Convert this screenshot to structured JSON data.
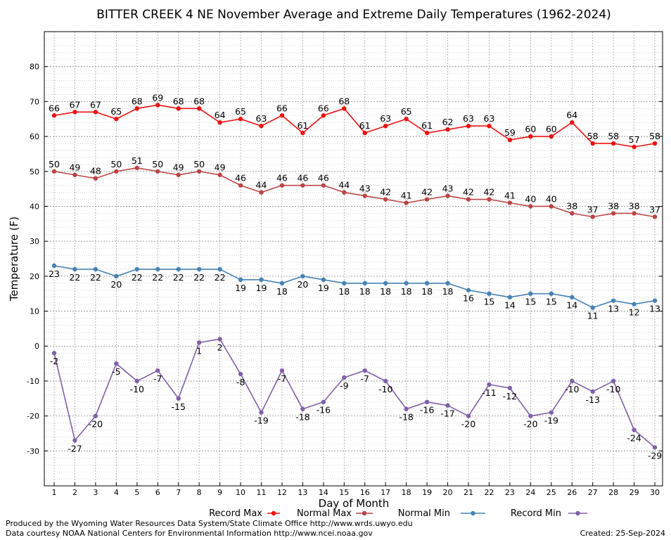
{
  "chart_data": {
    "type": "line",
    "title": "BITTER CREEK 4 NE November Average and Extreme Daily Temperatures (1962-2024)",
    "xlabel": "Day of Month",
    "ylabel": "Temperature (F)",
    "ylim": [
      -40,
      90
    ],
    "yticks": [
      -30,
      -20,
      -10,
      0,
      10,
      20,
      30,
      40,
      50,
      60,
      70,
      80
    ],
    "grid": true,
    "legend_position": "bottom",
    "x": [
      1,
      2,
      3,
      4,
      5,
      6,
      7,
      8,
      9,
      10,
      11,
      12,
      13,
      14,
      15,
      16,
      17,
      18,
      19,
      20,
      21,
      22,
      23,
      24,
      25,
      26,
      27,
      28,
      29,
      30
    ],
    "series": [
      {
        "name": "Record Max",
        "color": "#ee1111",
        "label_pos": "above",
        "values": [
          66,
          67,
          67,
          65,
          68,
          69,
          68,
          68,
          64,
          65,
          63,
          66,
          61,
          66,
          68,
          61,
          63,
          65,
          61,
          62,
          63,
          63,
          59,
          60,
          60,
          64,
          58,
          58,
          57,
          58
        ]
      },
      {
        "name": "Normal Max",
        "color": "#bb4444",
        "label_pos": "above",
        "values": [
          50,
          49,
          48,
          50,
          51,
          50,
          49,
          50,
          49,
          46,
          44,
          46,
          46,
          46,
          44,
          43,
          42,
          41,
          42,
          43,
          42,
          42,
          41,
          40,
          40,
          38,
          37,
          38,
          38,
          37
        ]
      },
      {
        "name": "Normal Min",
        "color": "#4682b4",
        "label_pos": "below",
        "values": [
          23,
          22,
          22,
          20,
          22,
          22,
          22,
          22,
          22,
          19,
          19,
          18,
          20,
          19,
          18,
          18,
          18,
          18,
          18,
          18,
          16,
          15,
          14,
          15,
          15,
          14,
          11,
          13,
          12,
          13
        ]
      },
      {
        "name": "Record Min",
        "color": "#8060a8",
        "label_pos": "below",
        "values": [
          -2,
          -27,
          -20,
          -5,
          -10,
          -7,
          -15,
          1,
          2,
          -8,
          -19,
          -7,
          -18,
          -16,
          -9,
          -7,
          -10,
          -18,
          -16,
          -17,
          -20,
          -11,
          -12,
          -20,
          -19,
          -10,
          -13,
          -10,
          -24,
          -29
        ]
      }
    ]
  },
  "footer": {
    "produced_by": "Produced by the Wyoming Water Resources Data System/State Climate Office http://www.wrds.uwyo.edu",
    "data_courtesy": "Data courtesy NOAA National Centers for Environmental Information http://www.ncei.noaa.gov",
    "created": "Created:  25-Sep-2024"
  }
}
